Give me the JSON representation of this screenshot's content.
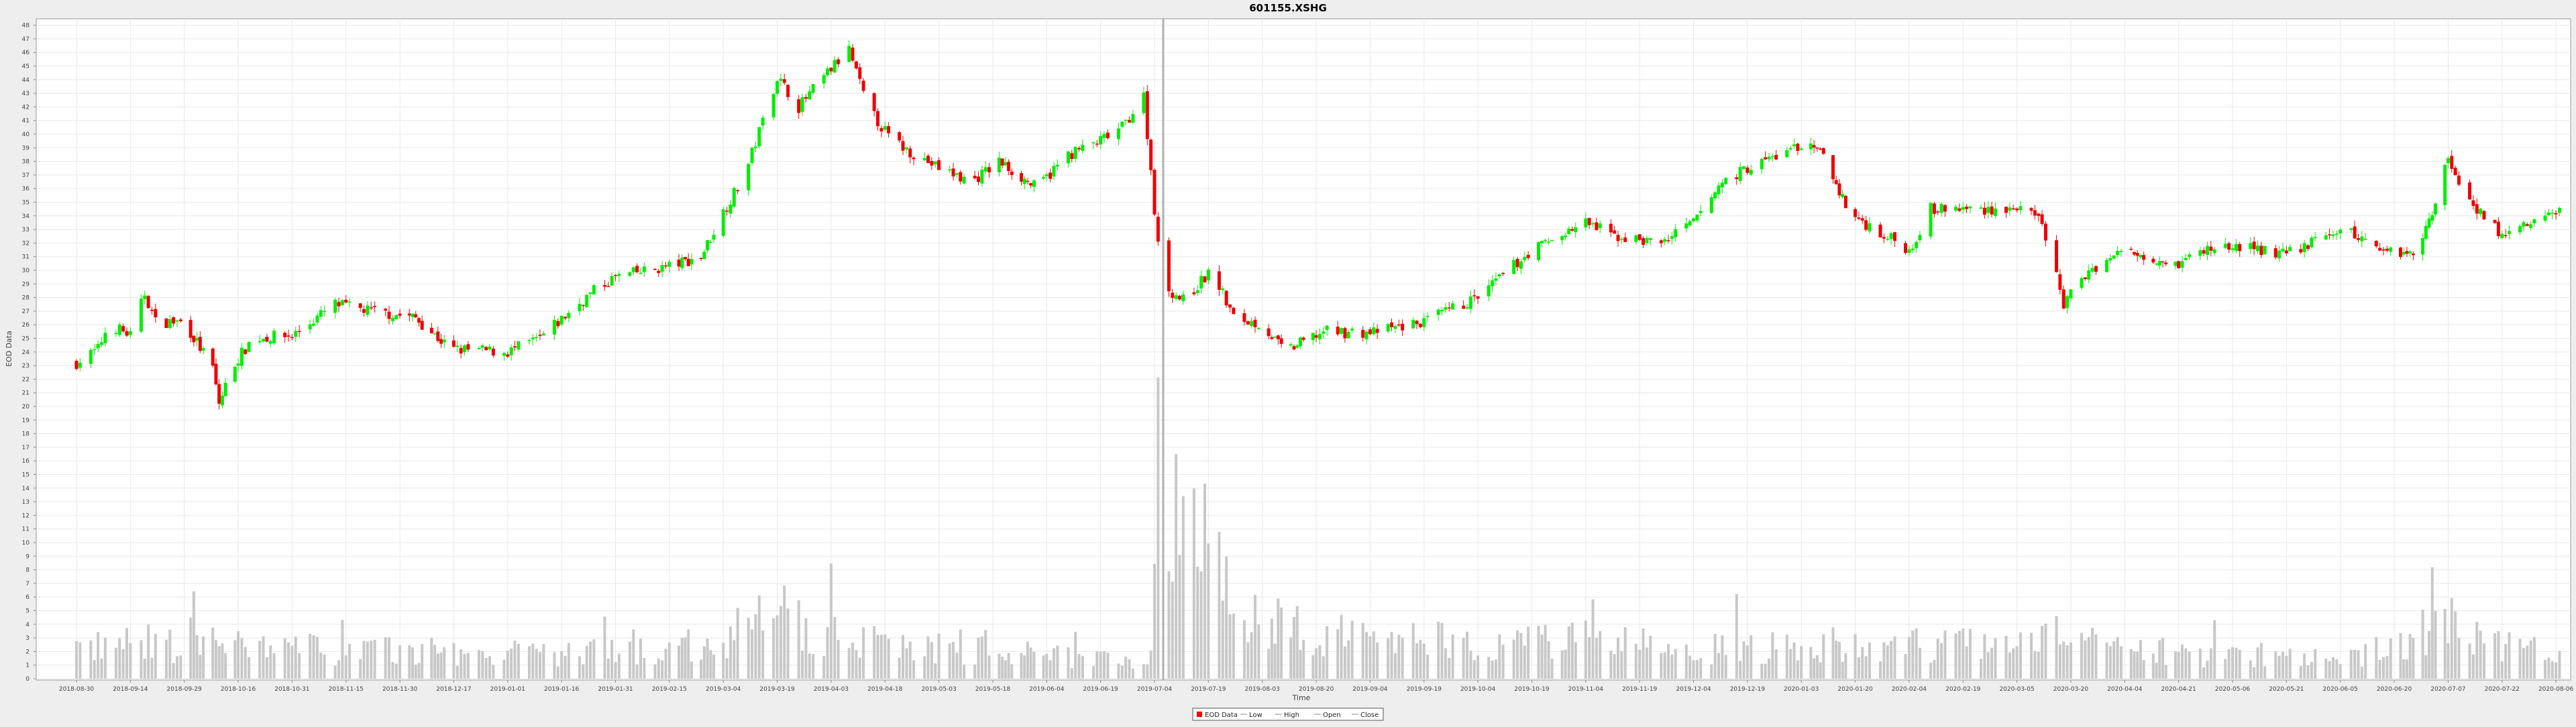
{
  "chart_data": {
    "type": "candlestick",
    "title": "601155.XSHG",
    "xlabel": "Time",
    "ylabel": "EOD Data",
    "ylim": [
      0,
      48
    ],
    "grid": true,
    "legend_position": "bottom-center",
    "x_ticks": [
      "2018-08-30",
      "2018-09-14",
      "2018-09-29",
      "2018-10-16",
      "2018-10-31",
      "2018-11-15",
      "2018-11-30",
      "2018-12-17",
      "2019-01-01",
      "2019-01-16",
      "2019-01-31",
      "2019-02-15",
      "2019-03-04",
      "2019-03-19",
      "2019-04-03",
      "2019-04-18",
      "2019-05-03",
      "2019-05-18",
      "2019-06-04",
      "2019-06-19",
      "2019-07-04",
      "2019-07-19",
      "2019-08-03",
      "2019-08-20",
      "2019-09-04",
      "2019-09-19",
      "2019-10-04",
      "2019-10-19",
      "2019-11-04",
      "2019-11-19",
      "2019-12-04",
      "2019-12-19",
      "2020-01-03",
      "2020-01-20",
      "2020-02-04",
      "2020-02-19",
      "2020-03-05",
      "2020-03-20",
      "2020-04-04",
      "2020-04-21",
      "2020-05-06",
      "2020-05-21",
      "2020-06-05",
      "2020-06-20",
      "2020-07-07",
      "2020-07-22",
      "2020-08-06"
    ],
    "legend": [
      {
        "label": "EOD Data",
        "color": "#ff0000"
      },
      {
        "label": "Low",
        "color": "#888888"
      },
      {
        "label": "High",
        "color": "#888888"
      },
      {
        "label": "Open",
        "color": "#888888"
      },
      {
        "label": "Close",
        "color": "#888888"
      }
    ],
    "colors": {
      "up": "#00ee00",
      "down": "#ee0000",
      "volume": "#c8c8c8",
      "plot_bg": "#ffffff",
      "grid": "#e8e8e8"
    },
    "price_path": [
      [
        "2018-08-30",
        23.2
      ],
      [
        "2018-09-05",
        24.2
      ],
      [
        "2018-09-08",
        26.1
      ],
      [
        "2018-09-14",
        25.2
      ],
      [
        "2018-09-18",
        28.3
      ],
      [
        "2018-09-21",
        26.2
      ],
      [
        "2018-09-29",
        26.2
      ],
      [
        "2018-10-08",
        22.8
      ],
      [
        "2018-10-10",
        20.2
      ],
      [
        "2018-10-14",
        22.8
      ],
      [
        "2018-10-20",
        25.0
      ],
      [
        "2018-10-31",
        25.2
      ],
      [
        "2018-11-12",
        27.5
      ],
      [
        "2018-11-22",
        27.0
      ],
      [
        "2018-12-05",
        26.5
      ],
      [
        "2018-12-16",
        24.2
      ],
      [
        "2019-01-01",
        24.0
      ],
      [
        "2019-01-10",
        25.0
      ],
      [
        "2019-01-25",
        28.5
      ],
      [
        "2019-01-31",
        29.5
      ],
      [
        "2019-02-15",
        30.3
      ],
      [
        "2019-02-25",
        31.0
      ],
      [
        "2019-03-04",
        34.3
      ],
      [
        "2019-03-10",
        37.0
      ],
      [
        "2019-03-19",
        44.2
      ],
      [
        "2019-03-25",
        42.0
      ],
      [
        "2019-04-03",
        44.8
      ],
      [
        "2019-04-08",
        46.2
      ],
      [
        "2019-04-13",
        42.0
      ],
      [
        "2019-04-20",
        39.5
      ],
      [
        "2019-05-03",
        37.5
      ],
      [
        "2019-05-12",
        36.5
      ],
      [
        "2019-05-20",
        38.0
      ],
      [
        "2019-06-01",
        36.0
      ],
      [
        "2019-06-10",
        38.5
      ],
      [
        "2019-06-19",
        39.5
      ],
      [
        "2019-06-25",
        40.5
      ],
      [
        "2019-07-01",
        42.8
      ],
      [
        "2019-07-06",
        29.0
      ],
      [
        "2019-07-12",
        27.8
      ],
      [
        "2019-07-20",
        30.0
      ],
      [
        "2019-07-26",
        26.5
      ],
      [
        "2019-08-03",
        26.0
      ],
      [
        "2019-08-10",
        24.0
      ],
      [
        "2019-08-22",
        25.5
      ],
      [
        "2019-09-04",
        25.4
      ],
      [
        "2019-09-19",
        26.2
      ],
      [
        "2019-10-04",
        28.0
      ],
      [
        "2019-10-19",
        31.5
      ],
      [
        "2019-11-04",
        33.5
      ],
      [
        "2019-11-12",
        32.5
      ],
      [
        "2019-11-25",
        32.0
      ],
      [
        "2019-12-04",
        33.5
      ],
      [
        "2019-12-12",
        36.5
      ],
      [
        "2019-12-19",
        37.5
      ],
      [
        "2020-01-03",
        39.2
      ],
      [
        "2020-01-10",
        38.5
      ],
      [
        "2020-01-18",
        34.2
      ],
      [
        "2020-02-04",
        31.5
      ],
      [
        "2020-02-10",
        34.5
      ],
      [
        "2020-02-19",
        34.5
      ],
      [
        "2020-03-05",
        34.5
      ],
      [
        "2020-03-12",
        33.5
      ],
      [
        "2020-03-18",
        27.5
      ],
      [
        "2020-03-25",
        30.0
      ],
      [
        "2020-04-04",
        31.5
      ],
      [
        "2020-04-21",
        30.5
      ],
      [
        "2020-04-28",
        31.5
      ],
      [
        "2020-05-06",
        31.8
      ],
      [
        "2020-05-21",
        31.2
      ],
      [
        "2020-06-05",
        33.0
      ],
      [
        "2020-06-20",
        31.3
      ],
      [
        "2020-06-28",
        31.5
      ],
      [
        "2020-07-07",
        38.2
      ],
      [
        "2020-07-12",
        35.5
      ],
      [
        "2020-07-22",
        32.5
      ],
      [
        "2020-08-06",
        34.3
      ],
      [
        "2020-08-14",
        34.5
      ]
    ],
    "volume_path": [
      [
        "2018-08-30",
        2.2
      ],
      [
        "2018-09-14",
        2.6
      ],
      [
        "2018-10-16",
        2.4
      ],
      [
        "2018-11-15",
        2.1
      ],
      [
        "2018-12-17",
        1.9
      ],
      [
        "2019-01-16",
        1.8
      ],
      [
        "2019-02-15",
        2.1
      ],
      [
        "2019-03-04",
        3.0
      ],
      [
        "2019-03-19",
        4.6
      ],
      [
        "2019-04-03",
        3.2
      ],
      [
        "2019-05-03",
        2.2
      ],
      [
        "2019-06-04",
        1.7
      ],
      [
        "2019-07-03",
        1.6
      ],
      [
        "2019-07-06",
        14.0
      ],
      [
        "2019-07-19",
        9.0
      ],
      [
        "2019-08-03",
        4.2
      ],
      [
        "2019-08-20",
        3.2
      ],
      [
        "2019-09-19",
        3.0
      ],
      [
        "2019-10-04",
        2.8
      ],
      [
        "2019-11-04",
        2.8
      ],
      [
        "2019-12-04",
        2.2
      ],
      [
        "2020-01-03",
        2.4
      ],
      [
        "2020-02-04",
        2.6
      ],
      [
        "2020-03-05",
        2.4
      ],
      [
        "2020-03-20",
        3.2
      ],
      [
        "2020-04-21",
        1.7
      ],
      [
        "2020-06-05",
        1.4
      ],
      [
        "2020-07-07",
        4.0
      ],
      [
        "2020-08-06",
        1.6
      ]
    ]
  }
}
